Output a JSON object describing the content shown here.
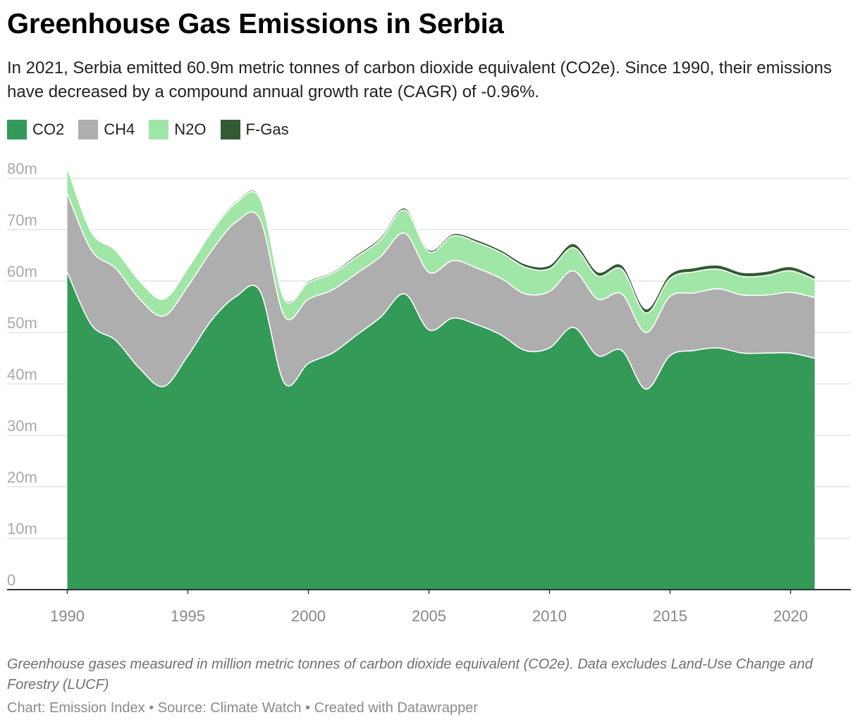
{
  "header": {
    "title": "Greenhouse Gas Emissions in Serbia",
    "subtitle": "In 2021, Serbia emitted 60.9m metric tonnes of carbon dioxide equivalent (CO2e). Since 1990, their emissions have decreased by a compound annual growth rate (CAGR) of -0.96%."
  },
  "legend": [
    {
      "label": "CO2",
      "color": "#339a58"
    },
    {
      "label": "CH4",
      "color": "#aeaeae"
    },
    {
      "label": "N2O",
      "color": "#a0e6a6"
    },
    {
      "label": "F-Gas",
      "color": "#325b35"
    }
  ],
  "footer": {
    "notes": "Greenhouse gases measured in million metric tonnes of carbon dioxide equivalent (CO2e). Data excludes Land-Use Change and Forestry (LUCF)",
    "credit": "Chart: Emission Index • Source: Climate Watch • Created with Datawrapper"
  },
  "chart_data": {
    "type": "area",
    "stacked": true,
    "x": [
      1990,
      1991,
      1992,
      1993,
      1994,
      1995,
      1996,
      1997,
      1998,
      1999,
      2000,
      2001,
      2002,
      2003,
      2004,
      2005,
      2006,
      2007,
      2008,
      2009,
      2010,
      2011,
      2012,
      2013,
      2014,
      2015,
      2016,
      2017,
      2018,
      2019,
      2020,
      2021
    ],
    "series": [
      {
        "name": "CO2",
        "color": "#339a58",
        "values": [
          61.7,
          51.5,
          48.5,
          43.0,
          39.5,
          45.5,
          52.5,
          57.0,
          58.0,
          40.2,
          44.0,
          46.0,
          49.5,
          53.0,
          57.5,
          50.5,
          52.8,
          51.5,
          49.5,
          46.5,
          47.0,
          51.0,
          45.5,
          46.5,
          39.0,
          45.5,
          46.5,
          47.0,
          46.0,
          46.0,
          46.0,
          45.0
        ]
      },
      {
        "name": "CH4",
        "color": "#aeaeae",
        "values": [
          15.3,
          14.5,
          14.0,
          13.5,
          13.7,
          13.5,
          13.5,
          14.5,
          14.0,
          13.0,
          12.5,
          12.3,
          12.0,
          11.8,
          11.8,
          11.2,
          11.2,
          11.0,
          11.0,
          11.0,
          11.0,
          11.0,
          11.0,
          11.0,
          11.0,
          11.5,
          11.2,
          11.5,
          11.3,
          11.3,
          11.8,
          11.8
        ]
      },
      {
        "name": "N2O",
        "color": "#a0e6a6",
        "values": [
          5.0,
          3.5,
          3.5,
          3.5,
          3.3,
          3.5,
          3.7,
          3.7,
          4.0,
          3.3,
          3.2,
          3.2,
          3.2,
          3.3,
          4.5,
          4.0,
          4.8,
          5.0,
          5.0,
          5.2,
          4.4,
          4.5,
          4.5,
          4.8,
          3.8,
          3.5,
          4.1,
          3.8,
          3.6,
          3.8,
          4.2,
          3.5
        ]
      },
      {
        "name": "F-Gas",
        "color": "#325b35",
        "values": [
          0.0,
          0.1,
          0.1,
          0.1,
          0.1,
          0.1,
          0.2,
          0.2,
          0.2,
          0.2,
          0.2,
          0.2,
          0.3,
          0.3,
          0.3,
          0.3,
          0.3,
          0.4,
          0.4,
          0.5,
          0.6,
          0.7,
          0.7,
          0.7,
          0.7,
          0.7,
          0.7,
          0.7,
          0.7,
          0.7,
          0.7,
          0.6
        ]
      }
    ],
    "xticks": [
      1990,
      1995,
      2000,
      2005,
      2010,
      2015,
      2020
    ],
    "xtick_labels": [
      "1990",
      "1995",
      "2000",
      "2005",
      "2010",
      "2015",
      "2020"
    ],
    "yticks": [
      0,
      10,
      20,
      30,
      40,
      50,
      60,
      70,
      80
    ],
    "ytick_labels": [
      "0",
      "10m",
      "20m",
      "30m",
      "40m",
      "50m",
      "60m",
      "70m",
      "80m"
    ],
    "xlim": [
      1987.5,
      2022.5
    ],
    "ylim": [
      0,
      80
    ],
    "grid": true
  }
}
